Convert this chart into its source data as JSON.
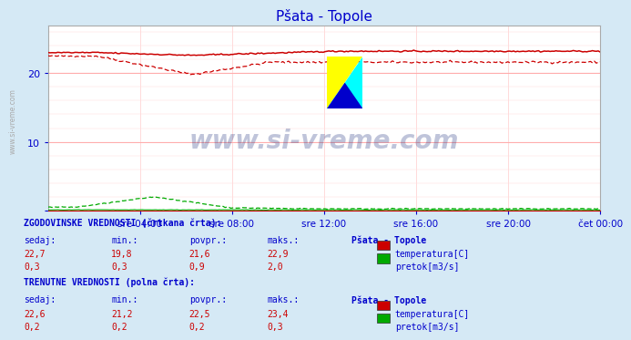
{
  "title": "Pšata - Topole",
  "bg_color": "#d5e9f5",
  "plot_bg_color": "#ffffff",
  "temp_color": "#cc0000",
  "pretok_color": "#00aa00",
  "visina_color": "#0000cc",
  "title_color": "#0000cc",
  "text_color": "#0000cc",
  "x_labels": [
    "sre 04:00",
    "sre 08:00",
    "sre 12:00",
    "sre 16:00",
    "sre 20:00",
    "čet 00:00"
  ],
  "y_lim": [
    0,
    27
  ],
  "watermark": "www.si-vreme.com",
  "hist_label": "ZGODOVINSKE VREDNOSTI (črtkana črta):",
  "curr_label": "TRENUTNE VREDNOSTI (polna črta):",
  "col_headers": [
    "sedaj:",
    "min.:",
    "povpr.:",
    "maks.:",
    "Pšata - Topole"
  ],
  "hist_temp": [
    "22,7",
    "19,8",
    "21,6",
    "22,9"
  ],
  "hist_pretok": [
    "0,3",
    "0,3",
    "0,9",
    "2,0"
  ],
  "curr_temp": [
    "22,6",
    "21,2",
    "22,5",
    "23,4"
  ],
  "curr_pretok": [
    "0,2",
    "0,2",
    "0,2",
    "0,3"
  ],
  "legend_temp": "temperatura[C]",
  "legend_pretok": "pretok[m3/s]"
}
